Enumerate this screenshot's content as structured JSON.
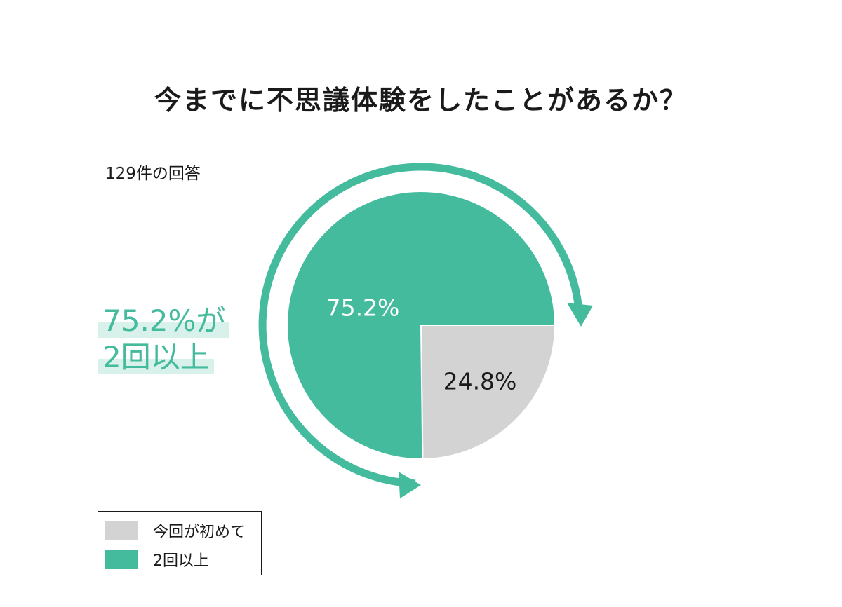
{
  "colors": {
    "accent": "#45bb9e",
    "gray": "#d3d3d3",
    "highlight_bg": "#d8f1ea",
    "text": "#1a1a1a"
  },
  "highlight": {
    "line1": "75.2%が",
    "line2": "2回以上"
  },
  "chart_data": {
    "type": "pie",
    "title": "今までに不思議体験をしたことがあるか？",
    "subtitle": "129件の回答",
    "slices": [
      {
        "label": "今回が初めて",
        "value": 24.8,
        "display": "24.8%",
        "color": "#d3d3d3"
      },
      {
        "label": "2回以上",
        "value": 75.2,
        "display": "75.2%",
        "color": "#45bb9e"
      }
    ],
    "legend": "bottom-left"
  }
}
